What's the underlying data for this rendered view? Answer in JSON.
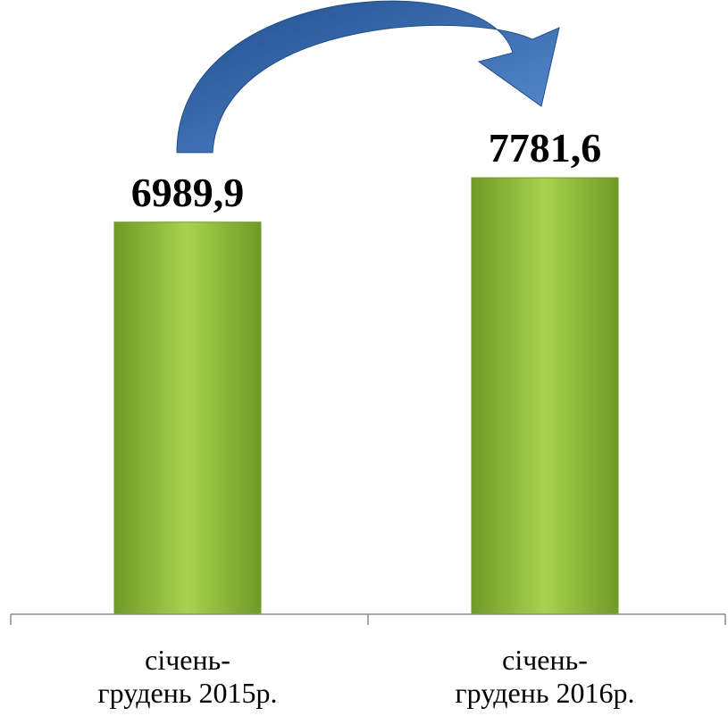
{
  "chart_data": {
    "type": "bar",
    "categories": [
      [
        "січень-",
        "грудень 2015р."
      ],
      [
        "січень-",
        "грудень 2016р."
      ]
    ],
    "values": [
      6989.9,
      7781.6
    ],
    "data_labels": [
      "6989,9",
      "7781,6"
    ],
    "title": "",
    "xlabel": "",
    "ylabel": "",
    "ylim": [
      0,
      10950
    ],
    "grid": false,
    "legend": "none",
    "annotations": [
      {
        "type": "curved-arrow",
        "from_category": 0,
        "to_category": 1,
        "color": "#2e63a7"
      }
    ],
    "colors": {
      "bar_light": "#a8d24e",
      "bar_mid": "#8ab83a",
      "bar_dark": "#6f9a26",
      "axis": "#8c8c8c",
      "arrow_light": "#5b8fd6",
      "arrow_dark": "#1f4e8c"
    }
  }
}
